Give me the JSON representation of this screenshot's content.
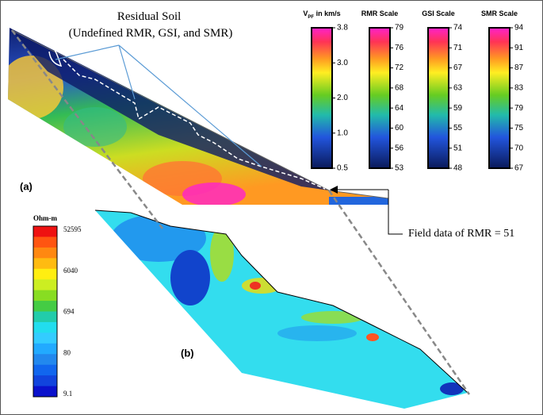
{
  "annotation": {
    "line1": "Residual Soil",
    "line2": "(Undefined RMR, GSI, and SMR)"
  },
  "panel_a_label": "(a)",
  "panel_b_label": "(b)",
  "field_note": "Field data of RMR = 51",
  "colorbars": [
    {
      "title": {
        "main": "V",
        "sub": "PF",
        "rest": " in km/s"
      },
      "ticks": [
        "3.8",
        "3.0",
        "2.0",
        "1.0",
        "0.5"
      ]
    },
    {
      "title": {
        "main": "RMR Scale"
      },
      "ticks": [
        "79",
        "76",
        "72",
        "68",
        "64",
        "60",
        "56",
        "53"
      ]
    },
    {
      "title": {
        "main": "GSI Scale"
      },
      "ticks": [
        "74",
        "71",
        "67",
        "63",
        "59",
        "55",
        "51",
        "48"
      ]
    },
    {
      "title": {
        "main": "SMR Scale"
      },
      "ticks": [
        "94",
        "91",
        "87",
        "83",
        "79",
        "75",
        "70",
        "67"
      ]
    }
  ],
  "resistivity_bar": {
    "title": "Ohm-m",
    "ticks": [
      "52595",
      "6040",
      "694",
      "80",
      "9.1"
    ]
  }
}
